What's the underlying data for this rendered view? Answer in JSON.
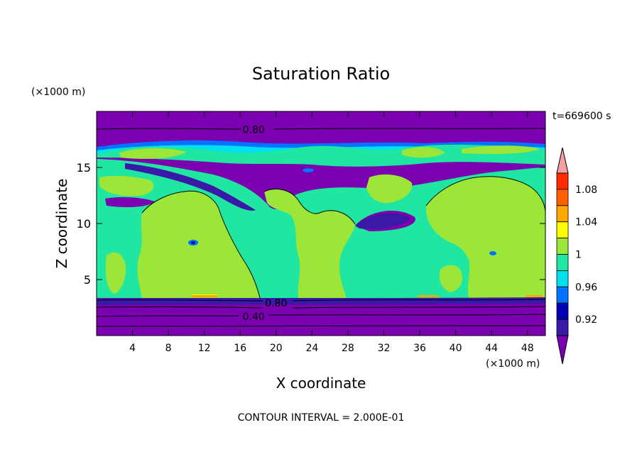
{
  "chart_data": {
    "type": "heatmap",
    "title": "Saturation Ratio",
    "xlabel": "X coordinate",
    "ylabel": "Z coordinate",
    "x_unit": "(×1000 m)",
    "y_unit": "(×1000 m)",
    "time_label": "t=669600 s",
    "footer": "CONTOUR INTERVAL = 2.000E-01",
    "xlim": [
      0,
      50
    ],
    "ylim": [
      0,
      20
    ],
    "x_ticks": [
      4,
      8,
      12,
      16,
      20,
      24,
      28,
      32,
      36,
      40,
      44,
      48
    ],
    "y_ticks": [
      5,
      10,
      15
    ],
    "contour_labels": [
      {
        "text": "0.80",
        "x": 17.5,
        "z": 18.4
      },
      {
        "text": "0.80",
        "x": 20.0,
        "z": 2.9
      },
      {
        "text": "0.40",
        "x": 17.5,
        "z": 1.7
      }
    ],
    "colorbar": {
      "tick_labels": [
        "1.08",
        "1.04",
        "1",
        "0.96",
        "0.92"
      ],
      "bins": [
        {
          "range": ">1.10",
          "color": "#f4a0a0"
        },
        {
          "range": "1.08–1.10",
          "color": "#ff2a00"
        },
        {
          "range": "1.06–1.08",
          "color": "#ff6000"
        },
        {
          "range": "1.04–1.06",
          "color": "#ffa800"
        },
        {
          "range": "1.02–1.04",
          "color": "#ffff00"
        },
        {
          "range": "1.00–1.02",
          "color": "#9be638"
        },
        {
          "range": "0.98–1.00",
          "color": "#1fe6a0"
        },
        {
          "range": "0.96–0.98",
          "color": "#00e0f0"
        },
        {
          "range": "0.94–0.96",
          "color": "#0074ff"
        },
        {
          "range": "0.92–0.94",
          "color": "#0000b4"
        },
        {
          "range": "0.90–0.92",
          "color": "#3a18a8"
        },
        {
          "range": "<0.90",
          "color": "#7a00b0"
        }
      ]
    },
    "field_regions": [
      {
        "level": "<0.90",
        "color": "#7a00b0",
        "note": "background"
      },
      {
        "level": "0.98–1.00",
        "color": "#1fe6a0",
        "z_range": [
          3.4,
          17.5
        ]
      },
      {
        "level": "1.00–1.02",
        "color": "#9be638"
      },
      {
        "level": "0.94–0.96",
        "color": "#0074ff"
      },
      {
        "level": "1.04–1.06",
        "color": "#ffa800"
      }
    ]
  }
}
